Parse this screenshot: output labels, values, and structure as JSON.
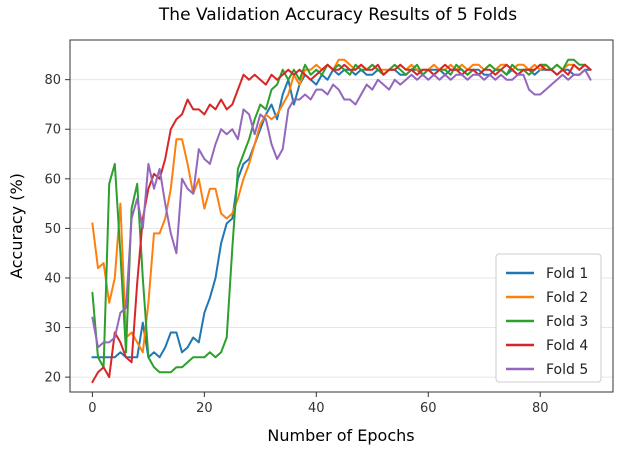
{
  "chart_data": {
    "type": "line",
    "title": "The Validation Accuracy Results of 5 Folds",
    "xlabel": "Number of Epochs",
    "ylabel": "Accuracy (%)",
    "xlim": [
      -4,
      93
    ],
    "ylim": [
      17,
      88
    ],
    "xticks": [
      0,
      20,
      40,
      60,
      80
    ],
    "yticks": [
      20,
      30,
      40,
      50,
      60,
      70,
      80
    ],
    "grid": "horizontal",
    "legend_position": "lower-right",
    "series": [
      {
        "name": "Fold 1",
        "color": "#1f77b4",
        "x": [
          0,
          1,
          2,
          3,
          4,
          5,
          6,
          7,
          8,
          9,
          10,
          11,
          12,
          13,
          14,
          15,
          16,
          17,
          18,
          19,
          20,
          21,
          22,
          23,
          24,
          25,
          26,
          27,
          28,
          29,
          30,
          31,
          32,
          33,
          34,
          35,
          36,
          37,
          38,
          39,
          40,
          41,
          42,
          43,
          44,
          45,
          46,
          47,
          48,
          49,
          50,
          51,
          52,
          53,
          54,
          55,
          56,
          57,
          58,
          59,
          60,
          61,
          62,
          63,
          64,
          65,
          66,
          67,
          68,
          69,
          70,
          71,
          72,
          73,
          74,
          75,
          76,
          77,
          78,
          79,
          80,
          81,
          82,
          83,
          84,
          85,
          86,
          87,
          88,
          89
        ],
        "values": [
          24,
          24,
          24,
          24,
          24,
          25,
          24,
          24,
          24,
          31,
          24,
          25,
          24,
          26,
          29,
          29,
          25,
          26,
          28,
          27,
          33,
          36,
          40,
          47,
          51,
          52,
          60,
          63,
          64,
          67,
          70,
          73,
          75,
          72,
          77,
          80,
          75,
          79,
          81,
          80,
          79,
          81,
          80,
          82,
          81,
          82,
          82,
          81,
          82,
          81,
          81,
          82,
          81,
          82,
          82,
          81,
          81,
          82,
          82,
          81,
          82,
          82,
          82,
          81,
          82,
          82,
          82,
          81,
          82,
          82,
          81,
          81,
          82,
          82,
          81,
          82,
          81,
          82,
          82,
          81,
          82,
          82,
          82,
          81,
          82,
          82,
          81,
          81,
          82,
          82
        ]
      },
      {
        "name": "Fold 2",
        "color": "#ff7f0e",
        "x": [
          0,
          1,
          2,
          3,
          4,
          5,
          6,
          7,
          8,
          9,
          10,
          11,
          12,
          13,
          14,
          15,
          16,
          17,
          18,
          19,
          20,
          21,
          22,
          23,
          24,
          25,
          26,
          27,
          28,
          29,
          30,
          31,
          32,
          33,
          34,
          35,
          36,
          37,
          38,
          39,
          40,
          41,
          42,
          43,
          44,
          45,
          46,
          47,
          48,
          49,
          50,
          51,
          52,
          53,
          54,
          55,
          56,
          57,
          58,
          59,
          60,
          61,
          62,
          63,
          64,
          65,
          66,
          67,
          68,
          69,
          70,
          71,
          72,
          73,
          74,
          75,
          76,
          77,
          78,
          79,
          80,
          81,
          82,
          83,
          84,
          85,
          86,
          87,
          88,
          89
        ],
        "values": [
          51,
          42,
          43,
          35,
          40,
          55,
          28,
          29,
          27,
          25,
          35,
          49,
          49,
          52,
          58,
          68,
          68,
          63,
          57,
          60,
          54,
          58,
          58,
          53,
          52,
          53,
          56,
          60,
          63,
          67,
          71,
          73,
          72,
          73,
          75,
          77,
          81,
          79,
          82,
          82,
          83,
          82,
          83,
          82,
          84,
          84,
          83,
          82,
          83,
          82,
          83,
          82,
          82,
          82,
          82,
          83,
          82,
          83,
          82,
          82,
          82,
          83,
          82,
          82,
          83,
          82,
          83,
          82,
          83,
          83,
          82,
          83,
          82,
          83,
          83,
          82,
          83,
          83,
          82,
          83,
          82,
          83,
          82,
          83,
          82,
          83,
          83,
          82,
          83,
          82
        ]
      },
      {
        "name": "Fold 3",
        "color": "#2ca02c",
        "x": [
          0,
          1,
          2,
          3,
          4,
          5,
          6,
          7,
          8,
          9,
          10,
          11,
          12,
          13,
          14,
          15,
          16,
          17,
          18,
          19,
          20,
          21,
          22,
          23,
          24,
          25,
          26,
          27,
          28,
          29,
          30,
          31,
          32,
          33,
          34,
          35,
          36,
          37,
          38,
          39,
          40,
          41,
          42,
          43,
          44,
          45,
          46,
          47,
          48,
          49,
          50,
          51,
          52,
          53,
          54,
          55,
          56,
          57,
          58,
          59,
          60,
          61,
          62,
          63,
          64,
          65,
          66,
          67,
          68,
          69,
          70,
          71,
          72,
          73,
          74,
          75,
          76,
          77,
          78,
          79,
          80,
          81,
          82,
          83,
          84,
          85,
          86,
          87,
          88,
          89
        ],
        "values": [
          37,
          24,
          22,
          59,
          63,
          45,
          25,
          54,
          59,
          40,
          24,
          22,
          21,
          21,
          21,
          22,
          22,
          23,
          24,
          24,
          24,
          25,
          24,
          25,
          28,
          46,
          62,
          65,
          68,
          72,
          75,
          74,
          78,
          79,
          82,
          80,
          82,
          80,
          83,
          81,
          82,
          81,
          83,
          82,
          83,
          82,
          81,
          83,
          82,
          82,
          83,
          82,
          81,
          82,
          83,
          82,
          81,
          82,
          83,
          81,
          82,
          81,
          82,
          82,
          81,
          83,
          82,
          81,
          82,
          81,
          82,
          83,
          82,
          82,
          81,
          83,
          82,
          82,
          81,
          82,
          83,
          83,
          82,
          83,
          82,
          84,
          84,
          83,
          83,
          82
        ]
      },
      {
        "name": "Fold 4",
        "color": "#d62728",
        "x": [
          0,
          1,
          2,
          3,
          4,
          5,
          6,
          7,
          8,
          9,
          10,
          11,
          12,
          13,
          14,
          15,
          16,
          17,
          18,
          19,
          20,
          21,
          22,
          23,
          24,
          25,
          26,
          27,
          28,
          29,
          30,
          31,
          32,
          33,
          34,
          35,
          36,
          37,
          38,
          39,
          40,
          41,
          42,
          43,
          44,
          45,
          46,
          47,
          48,
          49,
          50,
          51,
          52,
          53,
          54,
          55,
          56,
          57,
          58,
          59,
          60,
          61,
          62,
          63,
          64,
          65,
          66,
          67,
          68,
          69,
          70,
          71,
          72,
          73,
          74,
          75,
          76,
          77,
          78,
          79,
          80,
          81,
          82,
          83,
          84,
          85,
          86,
          87,
          88,
          89
        ],
        "values": [
          19,
          21,
          22,
          20,
          29,
          27,
          24,
          23,
          39,
          52,
          58,
          61,
          60,
          64,
          70,
          72,
          73,
          76,
          74,
          74,
          73,
          75,
          74,
          76,
          74,
          75,
          78,
          81,
          80,
          81,
          80,
          79,
          81,
          80,
          81,
          82,
          81,
          82,
          81,
          80,
          81,
          82,
          83,
          82,
          82,
          83,
          82,
          82,
          83,
          82,
          82,
          83,
          81,
          82,
          82,
          83,
          82,
          82,
          81,
          82,
          82,
          81,
          82,
          83,
          82,
          82,
          81,
          82,
          82,
          81,
          82,
          82,
          81,
          82,
          83,
          82,
          81,
          82,
          82,
          82,
          83,
          82,
          82,
          81,
          82,
          81,
          83,
          82,
          83,
          82
        ]
      },
      {
        "name": "Fold 5",
        "color": "#9467bd",
        "x": [
          0,
          1,
          2,
          3,
          4,
          5,
          6,
          7,
          8,
          9,
          10,
          11,
          12,
          13,
          14,
          15,
          16,
          17,
          18,
          19,
          20,
          21,
          22,
          23,
          24,
          25,
          26,
          27,
          28,
          29,
          30,
          31,
          32,
          33,
          34,
          35,
          36,
          37,
          38,
          39,
          40,
          41,
          42,
          43,
          44,
          45,
          46,
          47,
          48,
          49,
          50,
          51,
          52,
          53,
          54,
          55,
          56,
          57,
          58,
          59,
          60,
          61,
          62,
          63,
          64,
          65,
          66,
          67,
          68,
          69,
          70,
          71,
          72,
          73,
          74,
          75,
          76,
          77,
          78,
          79,
          80,
          81,
          82,
          83,
          84,
          85,
          86,
          87,
          88,
          89
        ],
        "values": [
          32,
          26,
          27,
          27,
          28,
          33,
          34,
          52,
          56,
          50,
          63,
          58,
          62,
          55,
          49,
          45,
          60,
          58,
          57,
          66,
          64,
          63,
          67,
          70,
          69,
          70,
          68,
          74,
          73,
          69,
          73,
          72,
          67,
          64,
          66,
          74,
          76,
          76,
          77,
          76,
          78,
          78,
          77,
          79,
          78,
          76,
          76,
          75,
          77,
          79,
          78,
          80,
          79,
          78,
          80,
          79,
          80,
          81,
          80,
          81,
          80,
          81,
          80,
          81,
          80,
          81,
          81,
          80,
          81,
          81,
          80,
          81,
          80,
          81,
          80,
          80,
          81,
          81,
          78,
          77,
          77,
          78,
          79,
          80,
          81,
          80,
          81,
          81,
          82,
          80
        ]
      }
    ]
  }
}
